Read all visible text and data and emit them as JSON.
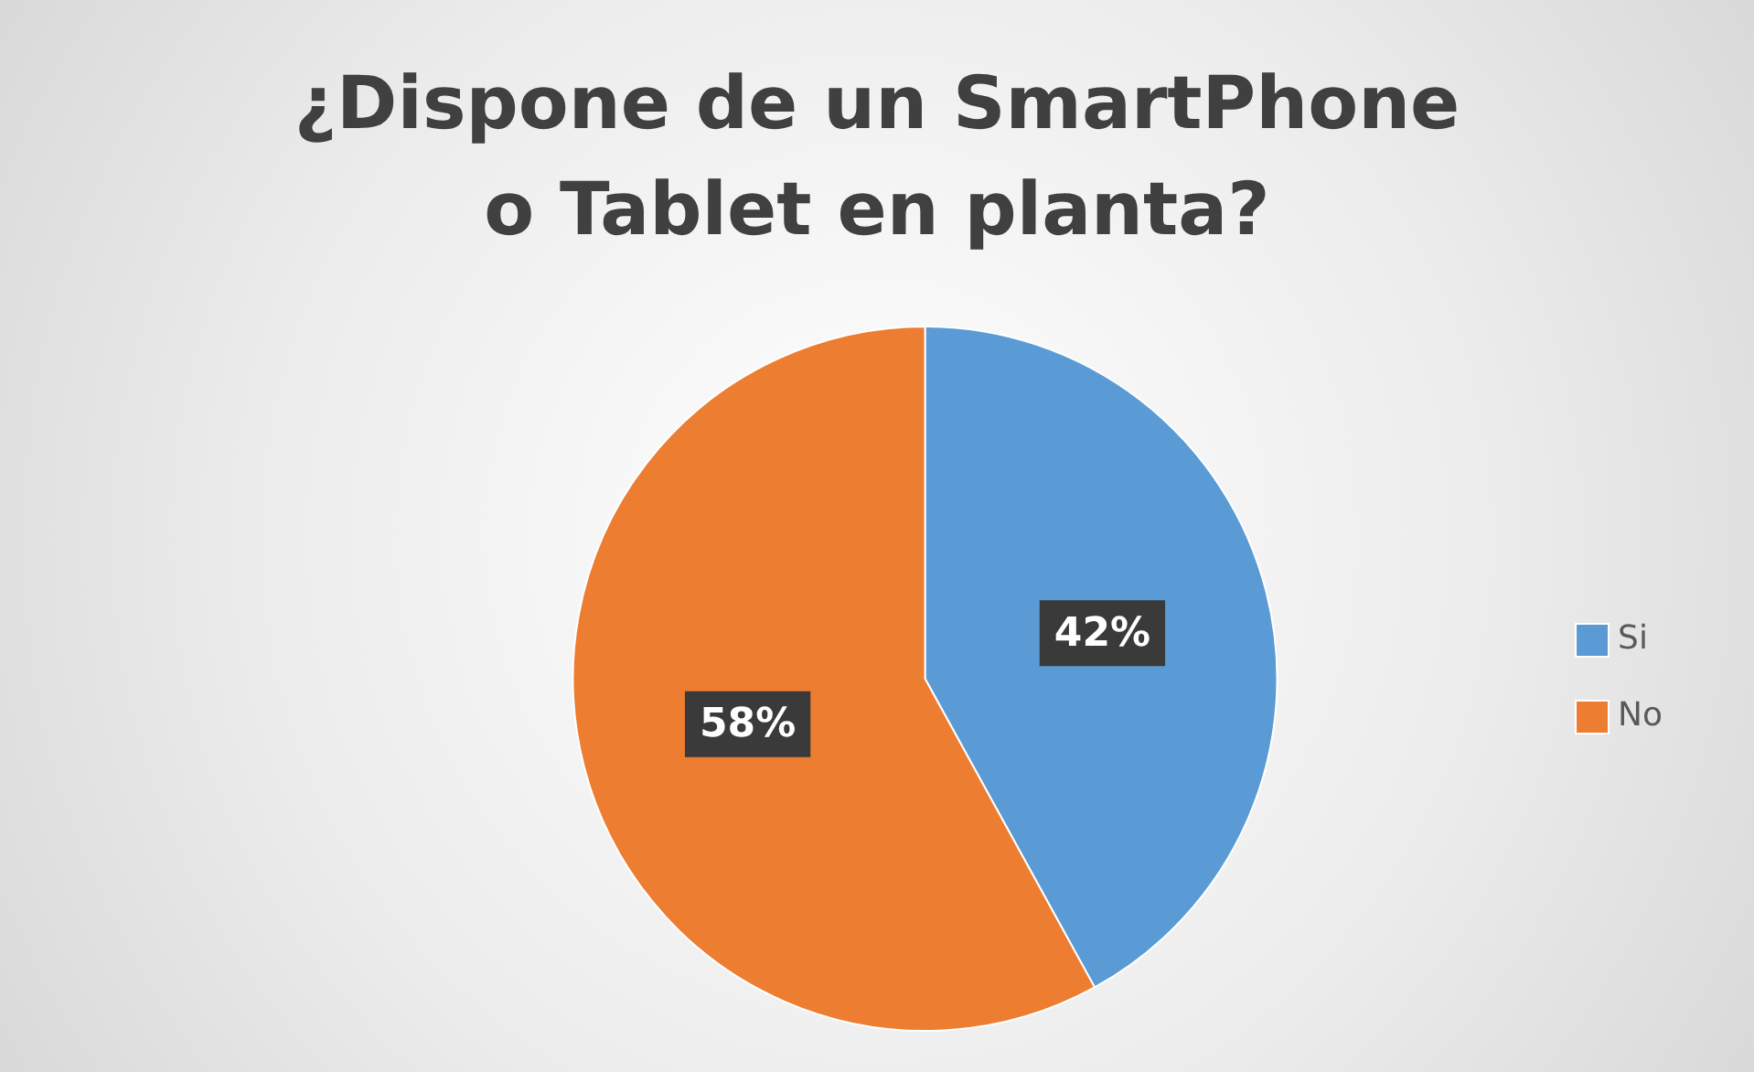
{
  "chart_data": {
    "type": "pie",
    "title": "¿Dispone de un SmartPhone o Tablet en planta?",
    "categories": [
      "Si",
      "No"
    ],
    "values": [
      42,
      58
    ],
    "colors": [
      "#5b9bd5",
      "#ed7d31"
    ],
    "value_labels": [
      "42%",
      "58%"
    ],
    "legend": "right"
  }
}
